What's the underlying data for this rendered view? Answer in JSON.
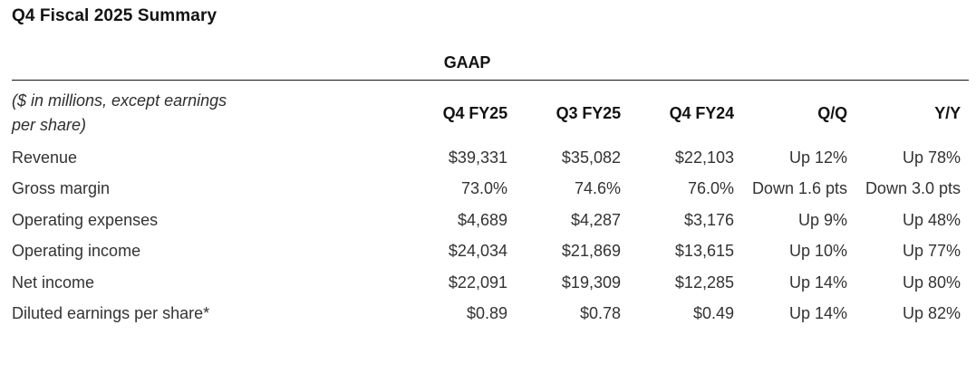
{
  "title": "Q4 Fiscal 2025 Summary",
  "table": {
    "group_header": "GAAP",
    "unit_note_line1": "($ in millions, except earnings",
    "unit_note_line2": "per share)",
    "columns": [
      "Q4 FY25",
      "Q3 FY25",
      "Q4 FY24",
      "Q/Q",
      "Y/Y"
    ],
    "rows": [
      {
        "label": "Revenue",
        "values": [
          "$39,331",
          "$35,082",
          "$22,103",
          "Up 12%",
          "Up 78%"
        ]
      },
      {
        "label": "Gross margin",
        "values": [
          "73.0%",
          "74.6%",
          "76.0%",
          "Down 1.6 pts",
          "Down 3.0 pts"
        ]
      },
      {
        "label": "Operating expenses",
        "values": [
          "$4,689",
          "$4,287",
          "$3,176",
          "Up 9%",
          "Up 48%"
        ]
      },
      {
        "label": "Operating income",
        "values": [
          "$24,034",
          "$21,869",
          "$13,615",
          "Up 10%",
          "Up 77%"
        ]
      },
      {
        "label": "Net income",
        "values": [
          "$22,091",
          "$19,309",
          "$12,285",
          "Up 14%",
          "Up 80%"
        ]
      },
      {
        "label": "Diluted earnings per share*",
        "values": [
          "$0.89",
          "$0.78",
          "$0.49",
          "Up 14%",
          "Up 82%"
        ]
      }
    ]
  },
  "colors": {
    "background": "#ffffff",
    "heading_text": "#121212",
    "body_text": "#333333",
    "rule": "#161616"
  }
}
